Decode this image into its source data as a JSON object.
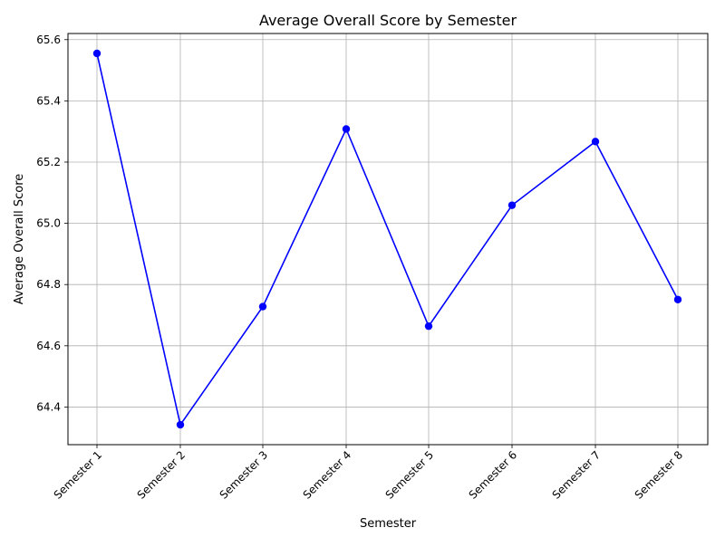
{
  "chart_data": {
    "type": "line",
    "title": "Average Overall Score by Semester",
    "xlabel": "Semester",
    "ylabel": "Average Overall Score",
    "categories": [
      "Semester 1",
      "Semester 2",
      "Semester 3",
      "Semester 4",
      "Semester 5",
      "Semester 6",
      "Semester 7",
      "Semester 8"
    ],
    "series": [
      {
        "values": [
          65.555,
          64.342,
          64.728,
          65.308,
          64.664,
          65.059,
          65.267,
          64.751
        ],
        "color": "#0000ff",
        "marker": "circle"
      }
    ],
    "yticks": [
      "64.4",
      "64.6",
      "64.8",
      "65.0",
      "65.2",
      "65.4",
      "65.6"
    ],
    "ylim": [
      64.277,
      65.62
    ],
    "grid": true,
    "legend": "none"
  }
}
